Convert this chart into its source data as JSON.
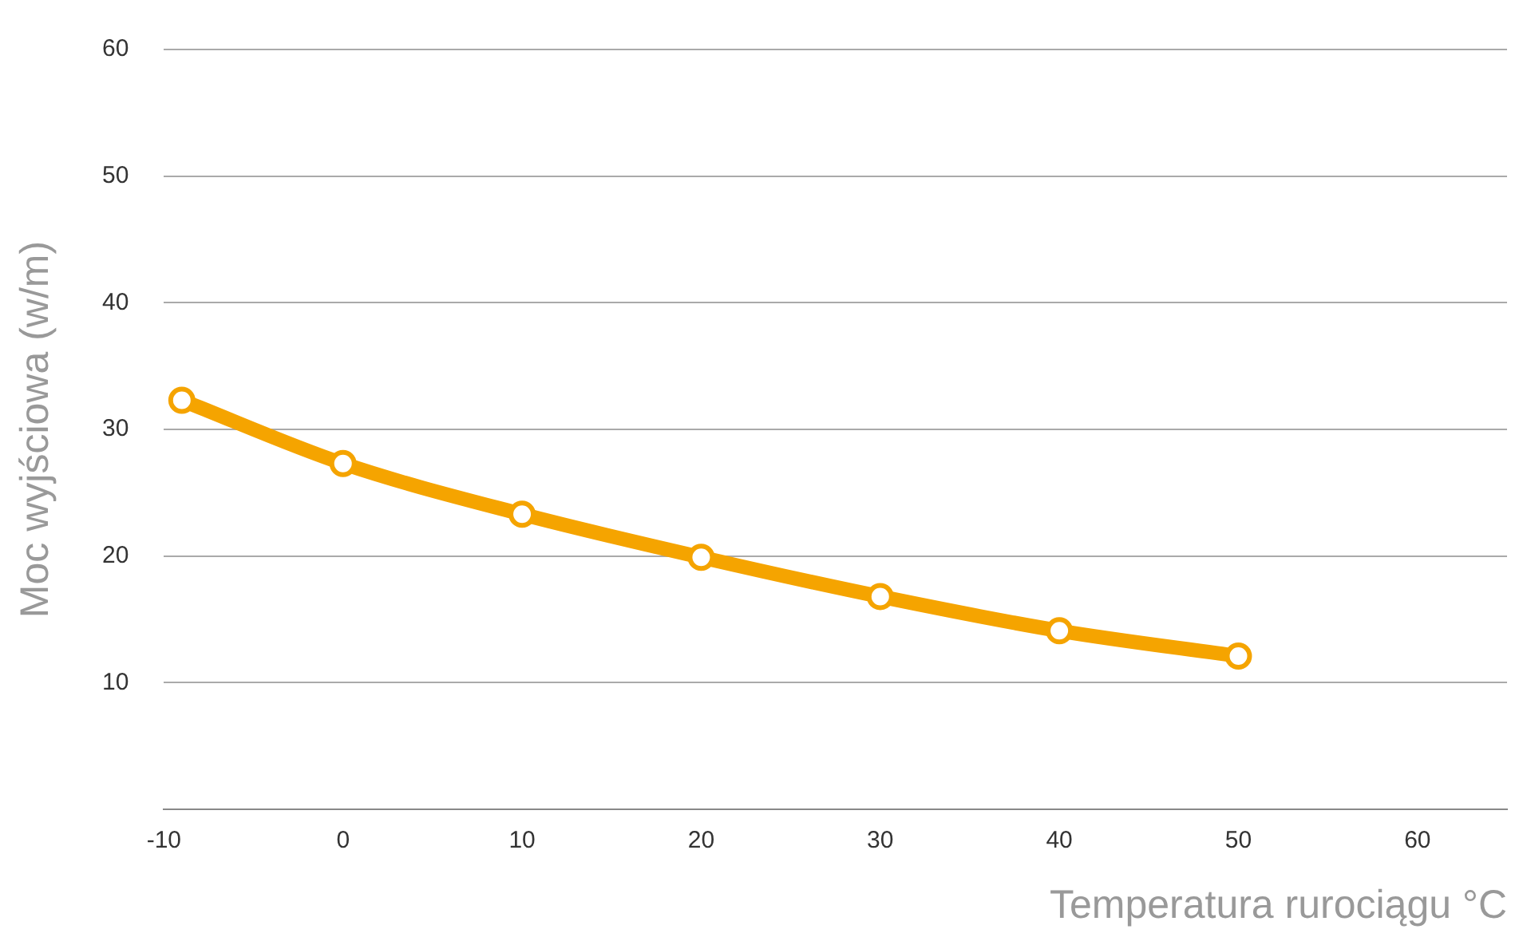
{
  "chart_data": {
    "type": "line",
    "xlabel": "Temperatura rurociągu °C",
    "ylabel": "Moc wyjściowa (w/m)",
    "x": [
      -9,
      0,
      10,
      20,
      30,
      40,
      50
    ],
    "series": [
      {
        "color": "#f5a400",
        "values": [
          32.3,
          27.3,
          23.3,
          19.9,
          16.8,
          14.1,
          12.1
        ]
      }
    ],
    "xlim": [
      -10,
      65
    ],
    "xticks": [
      -10,
      0,
      10,
      20,
      30,
      40,
      50,
      60
    ],
    "ylim": [
      0,
      60
    ],
    "yticks": [
      10,
      20,
      30,
      40,
      50,
      60
    ],
    "grid": "y",
    "legend": false,
    "marker": "circle",
    "line_style": "solid"
  }
}
